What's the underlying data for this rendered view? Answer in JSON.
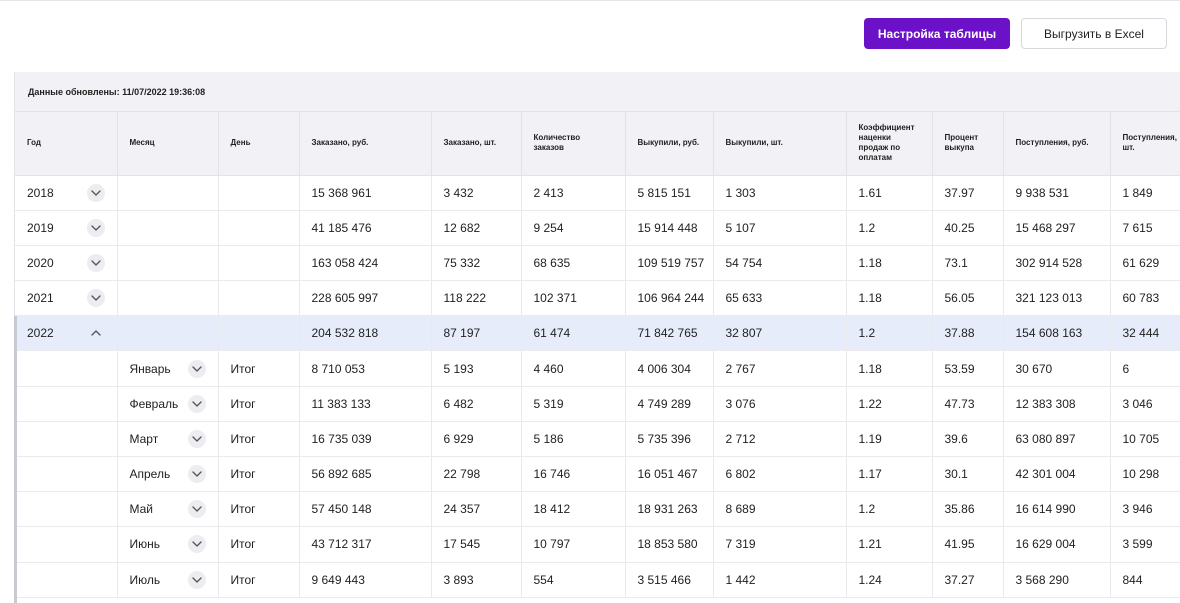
{
  "toolbar": {
    "settings_label": "Настройка таблицы",
    "export_label": "Выгрузить в Excel"
  },
  "updated_text": "Данные обновлены: 11/07/2022 19:36:08",
  "columns": [
    "Год",
    "Месяц",
    "День",
    "Заказано, руб.",
    "Заказано, шт.",
    "Количество заказов",
    "Выкупили, руб.",
    "Выкупили, шт.",
    "Коэффициент наценки продаж по оплатам",
    "Процент выкупа",
    "Поступления, руб.",
    "Поступления, шт."
  ],
  "rows": [
    {
      "year": "2018",
      "month": "",
      "day": "",
      "expanded": false,
      "vals": [
        "15 368 961",
        "3 432",
        "2 413",
        "5 815 151",
        "1 303",
        "1.61",
        "37.97",
        "9 938 531",
        "1 849"
      ]
    },
    {
      "year": "2019",
      "month": "",
      "day": "",
      "expanded": false,
      "vals": [
        "41 185 476",
        "12 682",
        "9 254",
        "15 914 448",
        "5 107",
        "1.2",
        "40.25",
        "15 468 297",
        "7 615"
      ]
    },
    {
      "year": "2020",
      "month": "",
      "day": "",
      "expanded": false,
      "vals": [
        "163 058 424",
        "75 332",
        "68 635",
        "109 519 757",
        "54 754",
        "1.18",
        "73.1",
        "302 914 528",
        "61 629"
      ]
    },
    {
      "year": "2021",
      "month": "",
      "day": "",
      "expanded": false,
      "vals": [
        "228 605 997",
        "118 222",
        "102 371",
        "106 964 244",
        "65 633",
        "1.18",
        "56.05",
        "321 123 013",
        "60 783"
      ]
    },
    {
      "year": "2022",
      "month": "",
      "day": "",
      "expanded": true,
      "selected": true,
      "vals": [
        "204 532 818",
        "87 197",
        "61 474",
        "71 842 765",
        "32 807",
        "1.2",
        "37.88",
        "154 608 163",
        "32 444"
      ]
    },
    {
      "year": "",
      "month": "Январь",
      "day": "Итог",
      "child": true,
      "vals": [
        "8 710 053",
        "5 193",
        "4 460",
        "4 006 304",
        "2 767",
        "1.18",
        "53.59",
        "30 670",
        "6"
      ]
    },
    {
      "year": "",
      "month": "Февраль",
      "day": "Итог",
      "child": true,
      "vals": [
        "11 383 133",
        "6 482",
        "5 319",
        "4 749 289",
        "3 076",
        "1.22",
        "47.73",
        "12 383 308",
        "3 046"
      ]
    },
    {
      "year": "",
      "month": "Март",
      "day": "Итог",
      "child": true,
      "vals": [
        "16 735 039",
        "6 929",
        "5 186",
        "5 735 396",
        "2 712",
        "1.19",
        "39.6",
        "63 080 897",
        "10 705"
      ]
    },
    {
      "year": "",
      "month": "Апрель",
      "day": "Итог",
      "child": true,
      "vals": [
        "56 892 685",
        "22 798",
        "16 746",
        "16 051 467",
        "6 802",
        "1.17",
        "30.1",
        "42 301 004",
        "10 298"
      ]
    },
    {
      "year": "",
      "month": "Май",
      "day": "Итог",
      "child": true,
      "vals": [
        "57 450 148",
        "24 357",
        "18 412",
        "18 931 263",
        "8 689",
        "1.2",
        "35.86",
        "16 614 990",
        "3 946"
      ]
    },
    {
      "year": "",
      "month": "Июнь",
      "day": "Итог",
      "child": true,
      "vals": [
        "43 712 317",
        "17 545",
        "10 797",
        "18 853 580",
        "7 319",
        "1.21",
        "41.95",
        "16 629 004",
        "3 599"
      ]
    },
    {
      "year": "",
      "month": "Июль",
      "day": "Итог",
      "child": true,
      "vals": [
        "9 649 443",
        "3 893",
        "554",
        "3 515 466",
        "1 442",
        "1.24",
        "37.27",
        "3 568 290",
        "844"
      ]
    }
  ]
}
